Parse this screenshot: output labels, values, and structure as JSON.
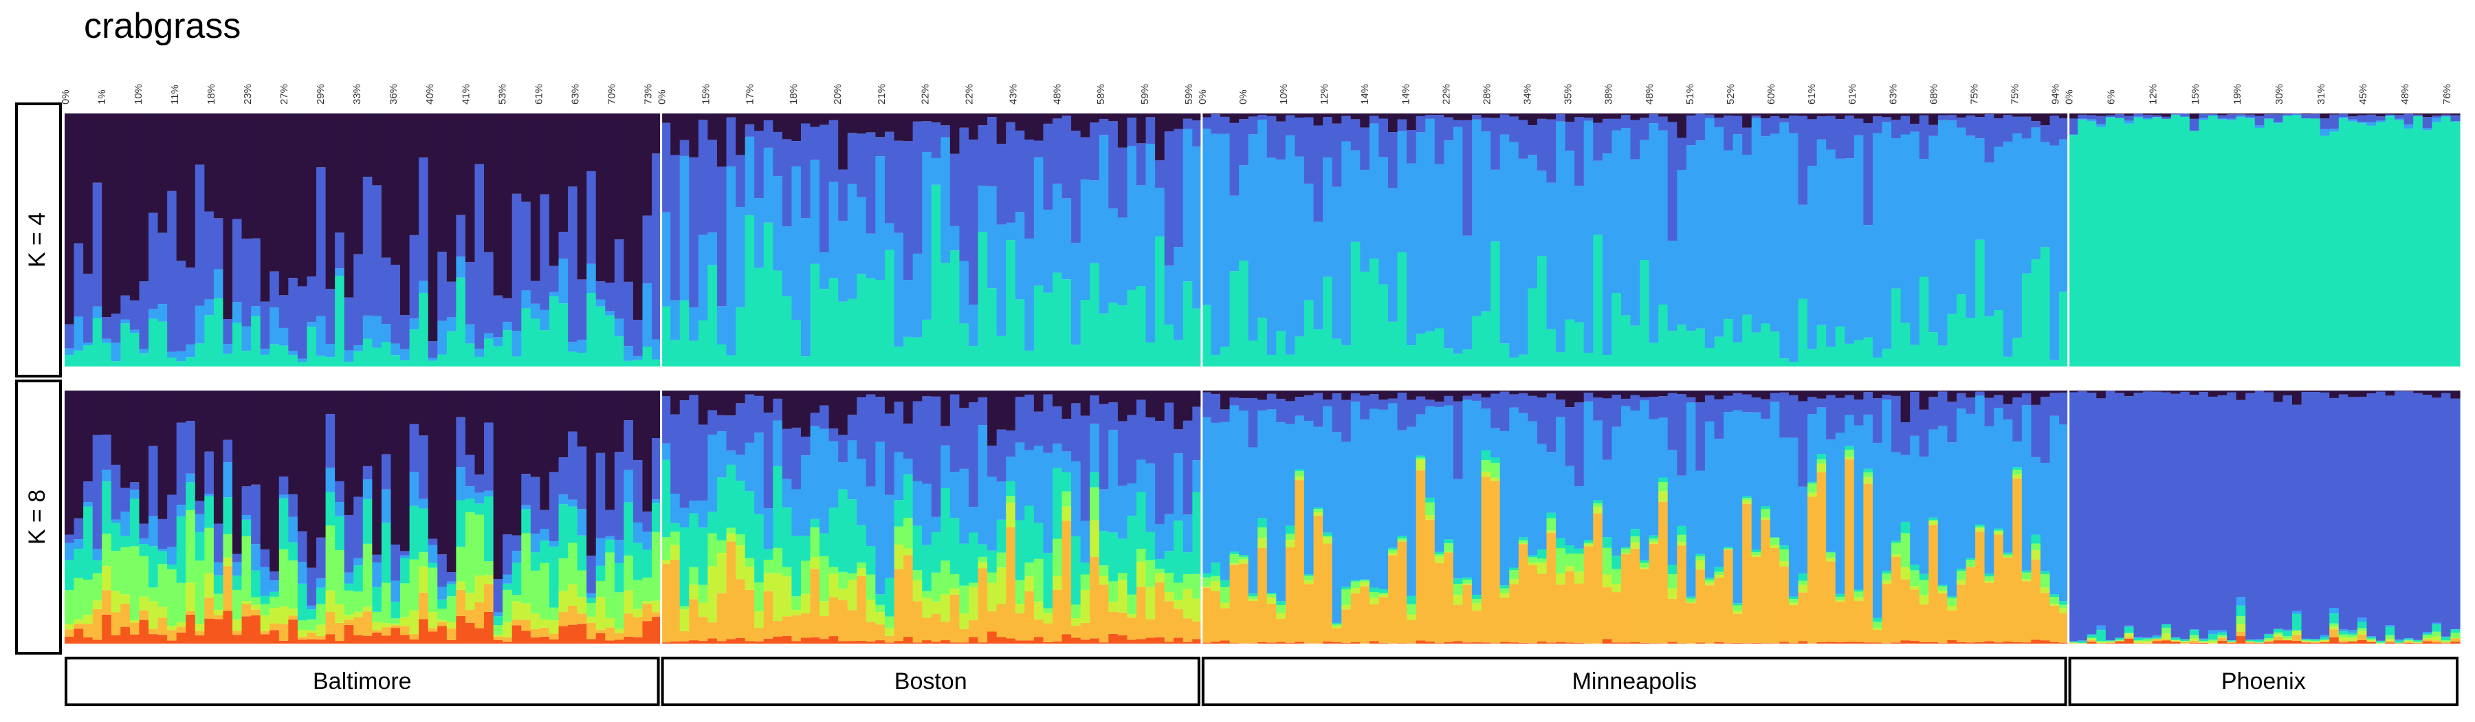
{
  "chart_data": {
    "type": "bar",
    "subtype": "stacked-structure-plot",
    "title": "crabgrass",
    "panels": [
      {
        "label": "K = 4",
        "k": 4
      },
      {
        "label": "K = 8",
        "k": 8
      }
    ],
    "populations": [
      {
        "name": "Baltimore",
        "n": 64,
        "tick_labels": [
          "0%",
          "1%",
          "10%",
          "11%",
          "18%",
          "23%",
          "27%",
          "29%",
          "33%",
          "36%",
          "40%",
          "41%",
          "53%",
          "61%",
          "63%",
          "70%",
          "73%"
        ]
      },
      {
        "name": "Boston",
        "n": 58,
        "tick_labels": [
          "0%",
          "15%",
          "17%",
          "18%",
          "20%",
          "21%",
          "22%",
          "22%",
          "43%",
          "48%",
          "58%",
          "59%",
          "59%"
        ]
      },
      {
        "name": "Minneapolis",
        "n": 93,
        "tick_labels": [
          "0%",
          "0%",
          "10%",
          "12%",
          "14%",
          "14%",
          "22%",
          "28%",
          "34%",
          "35%",
          "38%",
          "48%",
          "51%",
          "52%",
          "60%",
          "61%",
          "61%",
          "63%",
          "68%",
          "75%",
          "75%",
          "94%"
        ]
      },
      {
        "name": "Phoenix",
        "n": 42,
        "tick_labels": [
          "0%",
          "6%",
          "12%",
          "15%",
          "19%",
          "30%",
          "31%",
          "45%",
          "48%",
          "76%"
        ]
      }
    ],
    "palette": {
      "dark_purple": "#2d1240",
      "blue": "#4b62d6",
      "sky_blue": "#36a3f5",
      "teal": "#1de4b6",
      "light_green": "#7cff62",
      "lime": "#c8f23a",
      "orange": "#fbb93c",
      "red_orange": "#f5571c"
    },
    "k4_component_order": [
      "teal",
      "sky_blue",
      "blue",
      "dark_purple"
    ],
    "k8_component_order": [
      "red_orange",
      "orange",
      "lime",
      "light_green",
      "teal",
      "sky_blue",
      "blue",
      "dark_purple"
    ],
    "k4_mean_composition": {
      "Baltimore": {
        "dark_purple": 0.55,
        "blue": 0.28,
        "sky_blue": 0.05,
        "teal": 0.12
      },
      "Boston": {
        "dark_purple": 0.08,
        "blue": 0.22,
        "sky_blue": 0.45,
        "teal": 0.25
      },
      "Minneapolis": {
        "dark_purple": 0.01,
        "blue": 0.08,
        "sky_blue": 0.76,
        "teal": 0.15
      },
      "Phoenix": {
        "dark_purple": 0.0,
        "blue": 0.01,
        "sky_blue": 0.0,
        "teal": 0.99
      }
    },
    "k8_mean_composition": {
      "Baltimore": {
        "dark_purple": 0.45,
        "blue": 0.12,
        "sky_blue": 0.05,
        "teal": 0.1,
        "light_green": 0.15,
        "lime": 0.04,
        "orange": 0.04,
        "red_orange": 0.05
      },
      "Boston": {
        "dark_purple": 0.07,
        "blue": 0.25,
        "sky_blue": 0.2,
        "teal": 0.18,
        "light_green": 0.06,
        "lime": 0.07,
        "orange": 0.16,
        "red_orange": 0.01
      },
      "Minneapolis": {
        "dark_purple": 0.02,
        "blue": 0.1,
        "sky_blue": 0.5,
        "teal": 0.01,
        "light_green": 0.02,
        "lime": 0.01,
        "orange": 0.34,
        "red_orange": 0.0
      },
      "Phoenix": {
        "dark_purple": 0.005,
        "blue": 0.99,
        "sky_blue": 0.0,
        "teal": 0.005,
        "light_green": 0.0,
        "lime": 0.0,
        "orange": 0.0,
        "red_orange": 0.0
      }
    },
    "ylim": [
      0,
      1
    ],
    "grid": false,
    "legend": "none"
  }
}
